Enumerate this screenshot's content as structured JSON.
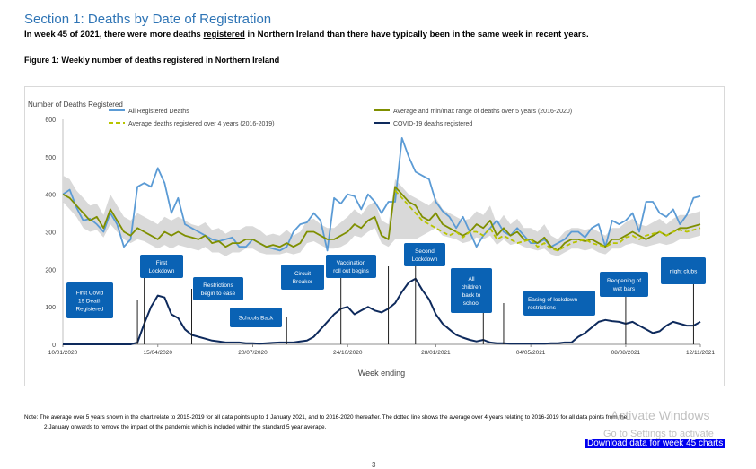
{
  "header": {
    "section_title": "Section 1: Deaths by Date of Registration",
    "subtitle_pre": "In week 45 of 2021, there were more deaths ",
    "subtitle_u": "registered",
    "subtitle_post": " in Northern Ireland than there have typically been in the same week in recent years.",
    "figure_title": "Figure 1: Weekly number of deaths registered in Northern Ireland"
  },
  "chart_data": {
    "type": "line",
    "ylabel": "Number of Deaths Registered",
    "xlabel": "Week ending",
    "ylim": [
      0,
      600
    ],
    "yticks": [
      0,
      100,
      200,
      300,
      400,
      500,
      600
    ],
    "xticks": [
      "10/01/2020",
      "15/04/2020",
      "20/07/2020",
      "24/10/2020",
      "28/01/2021",
      "04/05/2021",
      "08/08/2021",
      "12/11/2021"
    ],
    "x_start": "10/01/2020",
    "legend": [
      {
        "key": "all",
        "label": "All Registered Deaths"
      },
      {
        "key": "avg5",
        "label": "Average and min/max range of deaths over 5 years (2016-2020)"
      },
      {
        "key": "avg4",
        "label": "Average deaths registered over 4 years (2016-2019)"
      },
      {
        "key": "covid",
        "label": "COVID-19 deaths registered"
      }
    ],
    "colors": {
      "all": "#5b9bd5",
      "avg5": "#7f8f00",
      "avg4": "#b8c400",
      "covid": "#0e2a5c",
      "range": "#d9d9d9",
      "callout": "#0a62b4"
    },
    "series": {
      "all": [
        400,
        412,
        365,
        330,
        335,
        320,
        300,
        350,
        320,
        260,
        280,
        420,
        430,
        420,
        470,
        430,
        350,
        390,
        320,
        310,
        300,
        290,
        280,
        275,
        280,
        285,
        260,
        260,
        280,
        270,
        260,
        255,
        250,
        260,
        300,
        320,
        325,
        350,
        330,
        250,
        390,
        375,
        400,
        395,
        360,
        400,
        380,
        350,
        380,
        380,
        550,
        500,
        460,
        450,
        440,
        380,
        355,
        340,
        310,
        340,
        300,
        260,
        290,
        310,
        330,
        300,
        290,
        310,
        290,
        270,
        270,
        280,
        260,
        270,
        280,
        300,
        300,
        285,
        310,
        320,
        260,
        330,
        320,
        330,
        350,
        300,
        380,
        380,
        350,
        340,
        360,
        320,
        345,
        390,
        395
      ],
      "avg5": [
        400,
        390,
        370,
        350,
        330,
        340,
        310,
        360,
        330,
        300,
        290,
        310,
        300,
        290,
        280,
        300,
        290,
        300,
        290,
        285,
        280,
        290,
        270,
        275,
        260,
        270,
        270,
        280,
        280,
        270,
        260,
        265,
        260,
        270,
        260,
        270,
        300,
        300,
        290,
        280,
        280,
        290,
        300,
        320,
        310,
        330,
        340,
        290,
        280,
        420,
        400,
        380,
        370,
        340,
        330,
        350,
        320,
        310,
        300,
        290,
        300,
        320,
        310,
        330,
        290,
        310,
        290,
        300,
        280,
        280,
        270,
        285,
        260,
        250,
        270,
        280,
        280,
        275,
        280,
        270,
        260,
        280,
        280,
        290,
        300,
        290,
        280,
        290,
        300,
        290,
        300,
        310,
        310,
        315,
        320
      ],
      "avg4": [
        null,
        null,
        null,
        null,
        null,
        null,
        null,
        null,
        null,
        null,
        null,
        null,
        null,
        null,
        null,
        null,
        null,
        null,
        null,
        null,
        null,
        null,
        null,
        null,
        null,
        null,
        null,
        null,
        null,
        null,
        null,
        null,
        null,
        null,
        null,
        null,
        null,
        null,
        null,
        null,
        null,
        null,
        null,
        null,
        null,
        null,
        null,
        null,
        null,
        410,
        390,
        370,
        350,
        330,
        320,
        310,
        300,
        290,
        300,
        285,
        300,
        300,
        290,
        310,
        280,
        290,
        280,
        270,
        275,
        280,
        260,
        270,
        255,
        250,
        260,
        270,
        275,
        280,
        270,
        265,
        260,
        270,
        270,
        285,
        290,
        280,
        290,
        295,
        300,
        290,
        300,
        305,
        300,
        305,
        310
      ],
      "covid": [
        0,
        0,
        0,
        0,
        0,
        0,
        0,
        0,
        0,
        0,
        0,
        5,
        55,
        100,
        130,
        125,
        80,
        70,
        40,
        25,
        20,
        15,
        10,
        8,
        5,
        5,
        5,
        3,
        3,
        2,
        3,
        4,
        5,
        5,
        5,
        8,
        10,
        20,
        40,
        60,
        80,
        95,
        100,
        80,
        90,
        100,
        90,
        85,
        95,
        110,
        140,
        165,
        175,
        145,
        120,
        80,
        55,
        40,
        25,
        18,
        12,
        8,
        12,
        5,
        3,
        3,
        2,
        2,
        2,
        2,
        2,
        2,
        3,
        3,
        5,
        5,
        20,
        30,
        45,
        60,
        65,
        62,
        60,
        55,
        60,
        50,
        40,
        30,
        35,
        50,
        60,
        55,
        50,
        50,
        60
      ]
    },
    "range_min": [
      380,
      360,
      340,
      310,
      300,
      305,
      285,
      320,
      300,
      280,
      270,
      280,
      275,
      265,
      255,
      265,
      255,
      265,
      260,
      255,
      250,
      260,
      245,
      245,
      235,
      245,
      245,
      255,
      255,
      245,
      240,
      240,
      240,
      245,
      240,
      245,
      270,
      275,
      265,
      255,
      255,
      260,
      270,
      290,
      285,
      300,
      310,
      270,
      260,
      280,
      280,
      280,
      280,
      290,
      300,
      310,
      290,
      285,
      280,
      270,
      275,
      285,
      280,
      290,
      265,
      280,
      265,
      270,
      260,
      255,
      250,
      255,
      240,
      235,
      245,
      255,
      255,
      250,
      255,
      245,
      240,
      255,
      255,
      265,
      270,
      265,
      260,
      265,
      270,
      265,
      270,
      280,
      280,
      285,
      290
    ],
    "range_max": [
      450,
      440,
      410,
      390,
      370,
      375,
      345,
      400,
      370,
      340,
      330,
      350,
      340,
      330,
      320,
      340,
      330,
      340,
      330,
      320,
      315,
      325,
      305,
      310,
      295,
      305,
      305,
      315,
      315,
      305,
      290,
      295,
      290,
      305,
      290,
      300,
      330,
      335,
      320,
      310,
      310,
      325,
      340,
      360,
      345,
      370,
      380,
      330,
      320,
      440,
      420,
      400,
      390,
      380,
      370,
      390,
      360,
      350,
      340,
      330,
      335,
      355,
      345,
      370,
      320,
      345,
      320,
      335,
      310,
      310,
      300,
      320,
      290,
      280,
      300,
      310,
      310,
      305,
      310,
      300,
      290,
      310,
      310,
      325,
      335,
      320,
      315,
      325,
      335,
      320,
      335,
      345,
      345,
      350,
      355
    ],
    "annotations": [
      {
        "text": "First Covid\n19 Death\nRegistered",
        "week": 11
      },
      {
        "text": "First\nLockdown",
        "week": 12
      },
      {
        "text": "Restrictions\nbegin to ease",
        "week": 19
      },
      {
        "text": "Schools Back",
        "week": 33
      },
      {
        "text": "Circuit\nBreaker",
        "week": 41
      },
      {
        "text": "Vaccination\nroll out begins",
        "week": 48
      },
      {
        "text": "Second\nLockdown",
        "week": 52
      },
      {
        "text": "All\nchildren\nback to\nschool",
        "week": 62
      },
      {
        "text": "Easing of lockdown\nrestrictions",
        "week": 65
      },
      {
        "text": "Reopening of\nwet bars",
        "week": 83
      },
      {
        "text": "night clubs",
        "week": 93
      }
    ]
  },
  "note": {
    "line1": "Note: The average over 5 years shown in the chart relate to 2015-2019 for all data points up to 1 January 2021, and to 2016-2020 thereafter. The dotted line shows the average over 4 years relating to 2016-2019 for all data points from the",
    "line2": "2 January onwards to remove the impact of the pandemic which is included within the standard 5 year average."
  },
  "download_link": "Download data for week 45 charts",
  "watermark": {
    "line1": "Activate Windows",
    "line2": "Go to Settings to activate"
  },
  "page_number": "3"
}
